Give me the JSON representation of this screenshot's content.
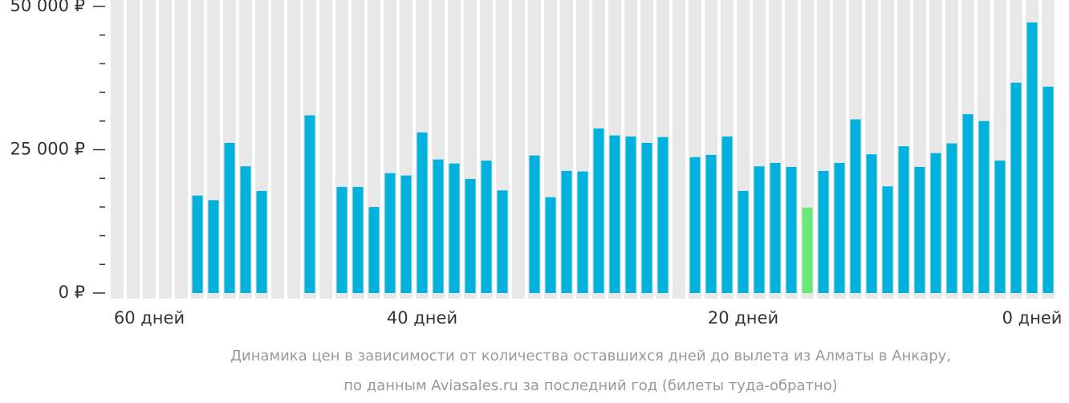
{
  "chart_data": {
    "type": "bar",
    "categories": [
      null,
      null,
      "60 дней",
      null,
      null,
      null,
      null,
      null,
      null,
      null,
      null,
      null,
      null,
      null,
      null,
      null,
      null,
      null,
      null,
      "40 дней",
      null,
      null,
      null,
      null,
      null,
      null,
      null,
      null,
      null,
      null,
      null,
      null,
      null,
      null,
      null,
      null,
      null,
      null,
      null,
      "20 дней",
      null,
      null,
      null,
      null,
      null,
      null,
      null,
      null,
      null,
      null,
      null,
      null,
      null,
      null,
      null,
      null,
      null,
      "0 дней",
      null
    ],
    "values": [
      null,
      null,
      null,
      null,
      null,
      17000,
      16200,
      26200,
      22100,
      17800,
      null,
      null,
      31000,
      null,
      18500,
      18500,
      15000,
      20900,
      20500,
      28000,
      23300,
      22600,
      19900,
      23100,
      17900,
      null,
      24000,
      16700,
      21300,
      21200,
      28700,
      27500,
      27300,
      26200,
      27200,
      null,
      23700,
      24100,
      27300,
      17800,
      22100,
      22700,
      22000,
      14900,
      21300,
      22700,
      30300,
      24200,
      18600,
      25600,
      22000,
      24400,
      26100,
      31200,
      30000,
      23100,
      36700,
      47200,
      36000
    ],
    "color": "#00b1de",
    "min_color": "#6ae97b",
    "stripe_color": "#e8e8e8",
    "ylim": [
      0,
      50000
    ],
    "yticks": [
      {
        "value": 0,
        "label": "0 ₽"
      },
      {
        "value": 25000,
        "label": "25 000 ₽"
      },
      {
        "value": 50000,
        "label": "50 000 ₽"
      }
    ],
    "yminorticks": [
      5000,
      10000,
      15000,
      20000,
      30000,
      35000,
      40000,
      45000
    ],
    "caption": [
      "Динамика цен в зависимости от количества оставшихся дней до вылета из Алматы в Анкару,",
      "по данным Aviasales.ru за последний год (билеты туда-обратно)"
    ]
  }
}
